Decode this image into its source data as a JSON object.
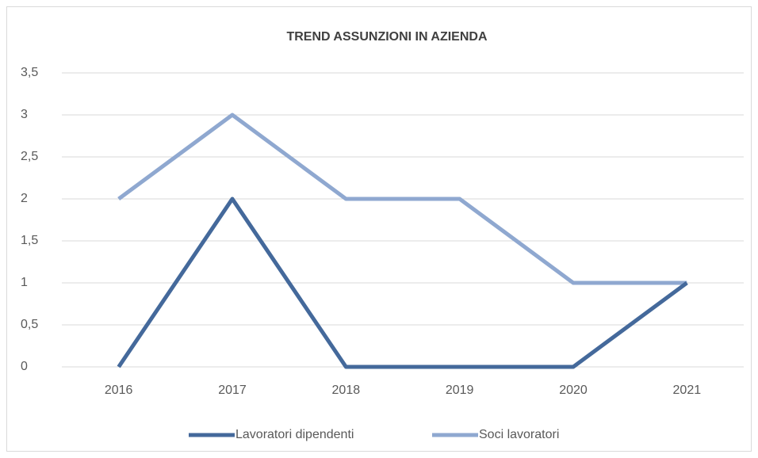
{
  "chart_data": {
    "type": "line",
    "title": "TREND ASSUNZIONI IN AZIENDA",
    "categories": [
      "2016",
      "2017",
      "2018",
      "2019",
      "2020",
      "2021"
    ],
    "series": [
      {
        "name": "Lavoratori dipendenti",
        "color": "#44699b",
        "values": [
          0,
          2,
          0,
          0,
          0,
          1
        ]
      },
      {
        "name": "Soci lavoratori",
        "color": "#8fa8d0",
        "values": [
          2,
          3,
          2,
          2,
          1,
          1
        ]
      }
    ],
    "ylim": [
      0,
      3.5
    ],
    "yticks": [
      0,
      {
        "value": 0.5,
        "label": "0,5"
      },
      1,
      {
        "value": 1.5,
        "label": "1,5"
      },
      2,
      {
        "value": 2.5,
        "label": "2,5"
      },
      3,
      {
        "value": 3.5,
        "label": "3,5"
      }
    ],
    "grid": true,
    "legend": "bottom"
  }
}
